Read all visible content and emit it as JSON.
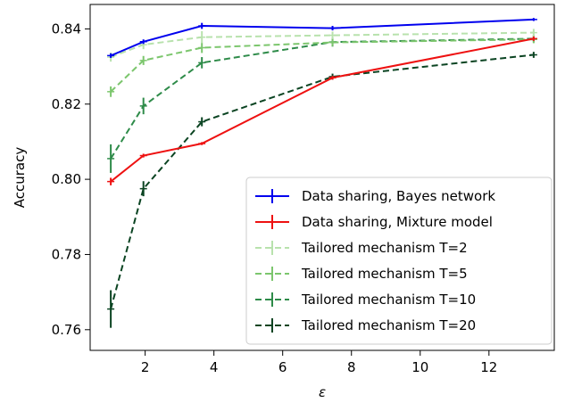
{
  "chart_data": {
    "type": "line",
    "title": "",
    "xlabel": "ε",
    "ylabel": "Accuracy",
    "xlim": [
      0.4,
      13.9
    ],
    "ylim": [
      0.7545,
      0.8465
    ],
    "xticks": [
      2,
      4,
      6,
      8,
      10,
      12
    ],
    "yticks": [
      0.76,
      0.78,
      0.8,
      0.82,
      0.84
    ],
    "ytick_labels": [
      "0.76",
      "0.78",
      "0.80",
      "0.82",
      "0.84"
    ],
    "grid": false,
    "legend_position": "lower-right",
    "x": [
      1.0,
      1.95,
      3.65,
      7.45,
      13.3
    ],
    "series": [
      {
        "name": "Data sharing, Bayes network",
        "color": "#0000ee",
        "style": "solid",
        "values": [
          0.8329,
          0.8366,
          0.8408,
          0.8402,
          0.8425
        ],
        "errors": [
          0.0006,
          0.0006,
          0.0008,
          0.0006,
          0.0004
        ]
      },
      {
        "name": "Data sharing, Mixture model",
        "color": "#ee1111",
        "style": "solid",
        "values": [
          0.7994,
          0.8063,
          0.8095,
          0.827,
          0.8374
        ],
        "errors": [
          0.001,
          0.0005,
          0.0004,
          0.0005,
          0.0006
        ]
      },
      {
        "name": "Tailored mechanism T=2",
        "color": "#b8e2ad",
        "style": "dashed",
        "values": [
          0.8325,
          0.8358,
          0.8378,
          0.8383,
          0.839
        ],
        "errors": [
          0.0012,
          0.0012,
          0.0016,
          0.001,
          0.001
        ]
      },
      {
        "name": "Tailored mechanism T=5",
        "color": "#7cc66d",
        "style": "dashed",
        "values": [
          0.8233,
          0.8316,
          0.835,
          0.8364,
          0.8372
        ],
        "errors": [
          0.0014,
          0.0012,
          0.0014,
          0.001,
          0.001
        ]
      },
      {
        "name": "Tailored mechanism T=10",
        "color": "#2e8b49",
        "style": "dashed",
        "values": [
          0.8055,
          0.8195,
          0.831,
          0.8365,
          0.8374
        ],
        "errors": [
          0.0038,
          0.0022,
          0.0015,
          0.0012,
          0.001
        ]
      },
      {
        "name": "Tailored mechanism T=20",
        "color": "#0b4422",
        "style": "dashed",
        "values": [
          0.7655,
          0.7975,
          0.8153,
          0.8273,
          0.8331
        ],
        "errors": [
          0.005,
          0.002,
          0.0012,
          0.0008,
          0.0008
        ]
      }
    ]
  }
}
